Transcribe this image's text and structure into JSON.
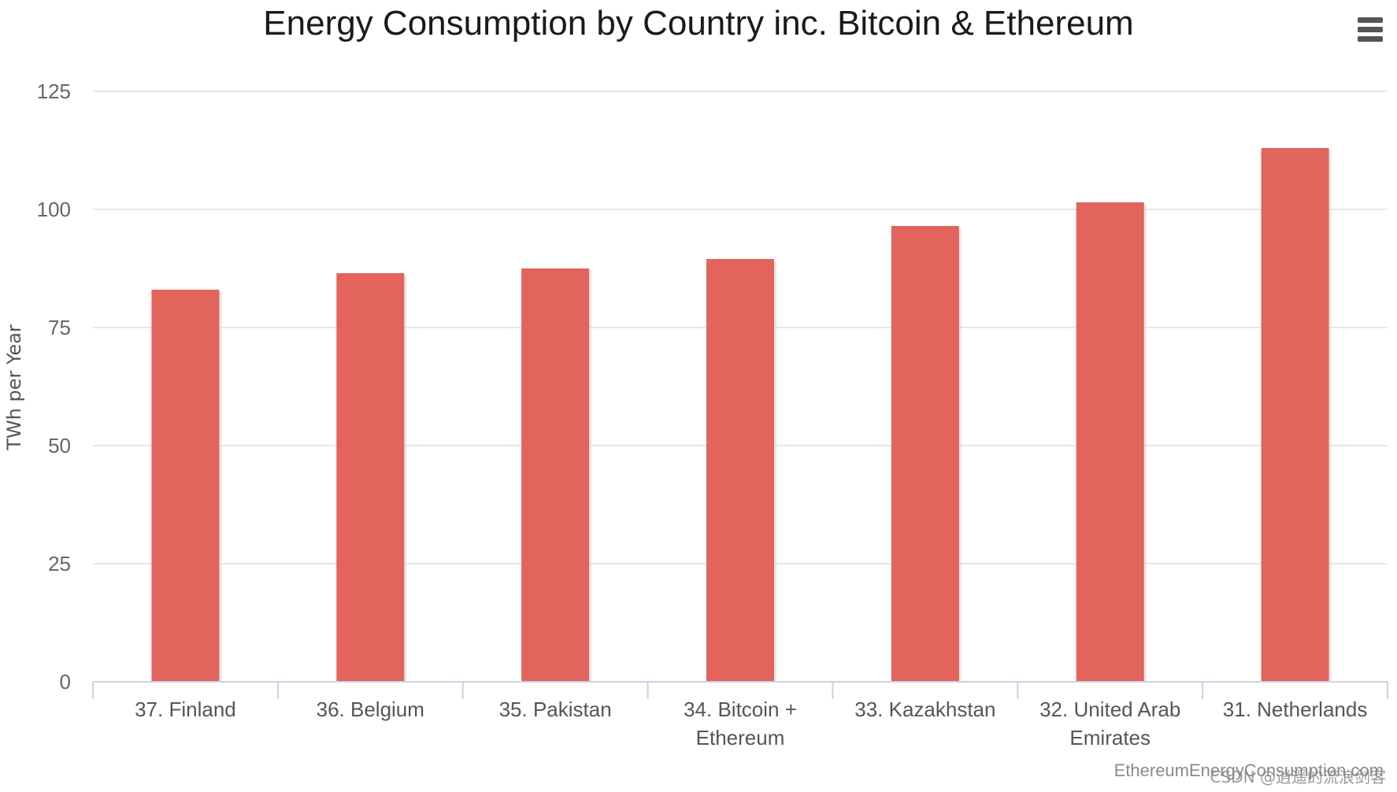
{
  "chart_data": {
    "type": "bar",
    "title": "Energy Consumption by Country inc. Bitcoin & Ethereum",
    "ylabel": "TWh per Year",
    "xlabel": "",
    "ylim": [
      0,
      125
    ],
    "yticks": [
      0,
      25,
      50,
      75,
      100,
      125
    ],
    "categories": [
      [
        "37. Finland"
      ],
      [
        "36. Belgium"
      ],
      [
        "35. Pakistan"
      ],
      [
        "34. Bitcoin +",
        "Ethereum"
      ],
      [
        "33. Kazakhstan"
      ],
      [
        "32. United Arab",
        "Emirates"
      ],
      [
        "31. Netherlands"
      ]
    ],
    "values": [
      83,
      86.5,
      87.5,
      89.5,
      96.5,
      101.5,
      113
    ],
    "bar_color": "#e2645d",
    "grid": true,
    "legend": "none",
    "credit": "EthereumEnergyConsumption.com"
  },
  "menu": {
    "icon": "hamburger-menu-icon"
  },
  "watermark": "CSDN @逍遥的流浪剑客"
}
